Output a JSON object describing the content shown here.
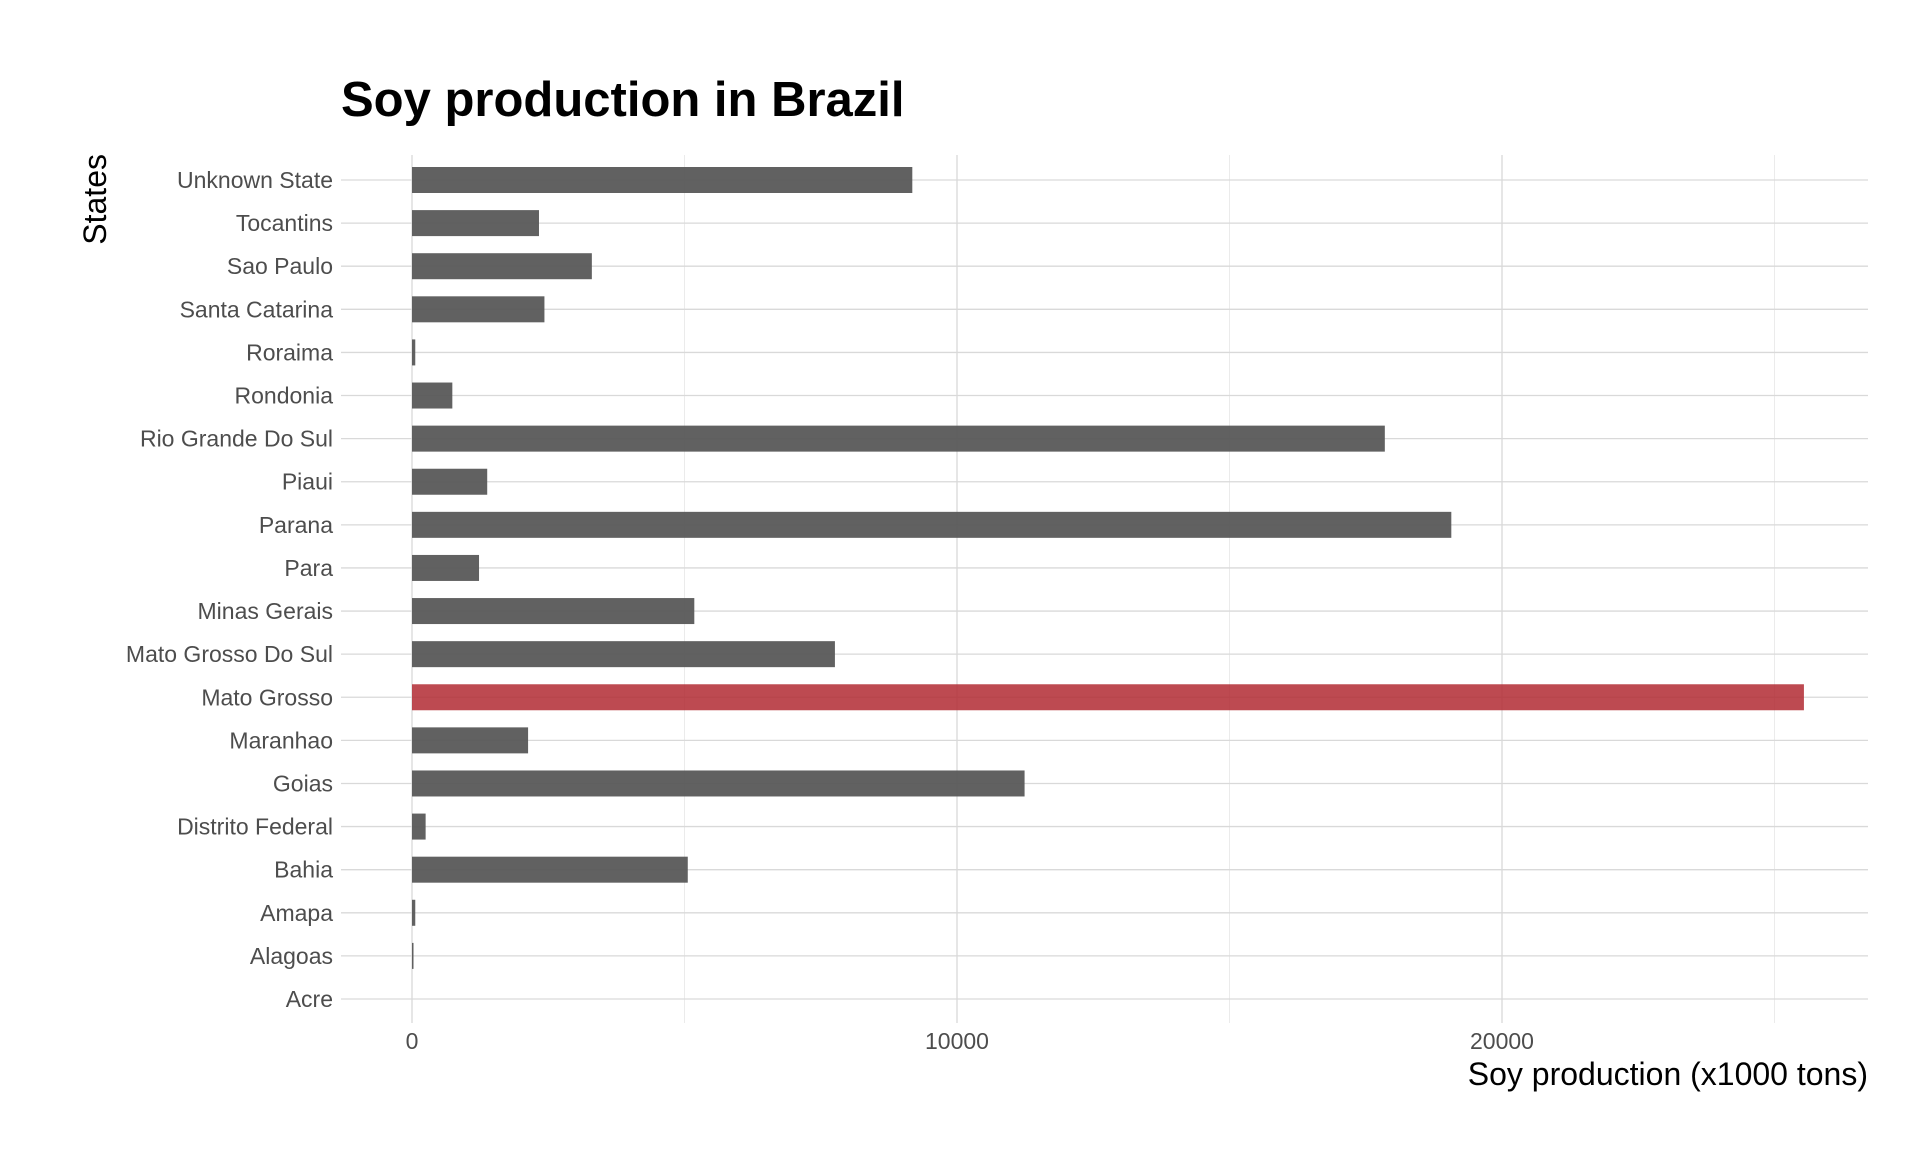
{
  "chart_data": {
    "type": "bar",
    "orientation": "horizontal",
    "title": "Soy production in Brazil",
    "xlabel": "Soy production (x1000 tons)",
    "ylabel": "States",
    "xlim": [
      0,
      26800
    ],
    "x_ticks": [
      0,
      10000,
      20000
    ],
    "x_tick_labels": [
      "0",
      "10000",
      "20000"
    ],
    "grid": true,
    "legend": "none",
    "colors": {
      "default_bar": "#595959",
      "highlight_bar": "#b22a32"
    },
    "categories": [
      "Unknown State",
      "Tocantins",
      "Sao Paulo",
      "Santa Catarina",
      "Roraima",
      "Rondonia",
      "Rio Grande Do Sul",
      "Piaui",
      "Parana",
      "Para",
      "Minas Gerais",
      "Mato Grosso Do Sul",
      "Mato Grosso",
      "Maranhao",
      "Goias",
      "Distrito Federal",
      "Bahia",
      "Amapa",
      "Alagoas",
      "Acre"
    ],
    "values": [
      9180,
      2330,
      3300,
      2430,
      60,
      740,
      17850,
      1380,
      19070,
      1230,
      5180,
      7760,
      25540,
      2130,
      11240,
      250,
      5060,
      60,
      20,
      0
    ],
    "highlight": [
      "Mato Grosso"
    ]
  }
}
